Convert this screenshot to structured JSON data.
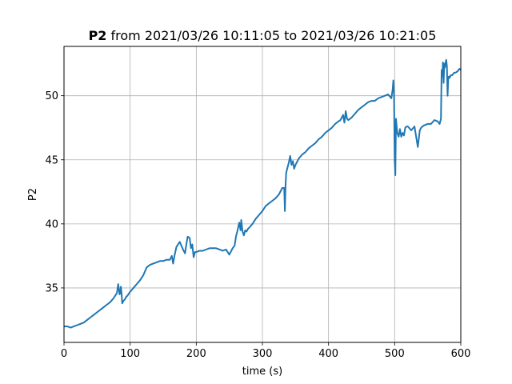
{
  "chart_data": {
    "type": "line",
    "title_bold": "P2",
    "title_rest": " from 2021/03/26 10:11:05 to 2021/03/26 10:21:05",
    "xlabel": "time (s)",
    "ylabel": "P2",
    "xlim": [
      0,
      600
    ],
    "ylim": [
      30.75,
      53.85
    ],
    "xticks": [
      0,
      100,
      200,
      300,
      400,
      500,
      600
    ],
    "yticks": [
      35,
      40,
      45,
      50
    ],
    "grid": true,
    "line_color": "#1f77b4",
    "series": [
      {
        "x": [
          0,
          5,
          10,
          15,
          20,
          25,
          30,
          35,
          40,
          45,
          50,
          55,
          60,
          65,
          70,
          75,
          80,
          82,
          84,
          85,
          86,
          87,
          88,
          90,
          92,
          94,
          96,
          100,
          105,
          110,
          115,
          120,
          125,
          130,
          135,
          140,
          145,
          150,
          155,
          160,
          163,
          165,
          167,
          170,
          175,
          180,
          183,
          185,
          187,
          190,
          192,
          194,
          196,
          198,
          200,
          205,
          210,
          215,
          220,
          225,
          230,
          235,
          240,
          245,
          250,
          255,
          258,
          260,
          262,
          265,
          267,
          268,
          270,
          272,
          274,
          276,
          278,
          280,
          285,
          290,
          295,
          300,
          305,
          310,
          315,
          320,
          325,
          330,
          333,
          334,
          335,
          336,
          338,
          340,
          342,
          344,
          346,
          348,
          350,
          355,
          360,
          365,
          370,
          375,
          380,
          385,
          390,
          395,
          400,
          405,
          410,
          415,
          418,
          420,
          422,
          424,
          426,
          428,
          430,
          435,
          440,
          445,
          450,
          455,
          460,
          465,
          470,
          475,
          480,
          485,
          490,
          495,
          497,
          498,
          499,
          500,
          501,
          502,
          503,
          504,
          506,
          508,
          510,
          512,
          514,
          516,
          518,
          520,
          525,
          530,
          535,
          538,
          540,
          542,
          545,
          550,
          555,
          560,
          565,
          568,
          570,
          571,
          572,
          573,
          574,
          575,
          576,
          577,
          578,
          579,
          580,
          581,
          582,
          583,
          585,
          587,
          590,
          592,
          595,
          598,
          600
        ],
        "y": [
          32.0,
          32.0,
          31.9,
          32.0,
          32.1,
          32.2,
          32.3,
          32.5,
          32.7,
          32.9,
          33.1,
          33.3,
          33.5,
          33.7,
          33.9,
          34.2,
          34.6,
          35.3,
          34.5,
          34.6,
          35.1,
          34.6,
          33.8,
          34.0,
          34.1,
          34.3,
          34.4,
          34.7,
          35.0,
          35.3,
          35.6,
          36.0,
          36.6,
          36.8,
          36.9,
          37.0,
          37.1,
          37.1,
          37.2,
          37.2,
          37.5,
          36.9,
          37.5,
          38.2,
          38.6,
          38.0,
          37.7,
          38.4,
          39.0,
          38.9,
          38.1,
          38.4,
          37.4,
          37.8,
          37.8,
          37.9,
          37.9,
          38.0,
          38.1,
          38.1,
          38.1,
          38.0,
          37.9,
          38.0,
          37.6,
          38.1,
          38.3,
          39.0,
          39.4,
          40.1,
          39.5,
          40.3,
          39.4,
          39.1,
          39.5,
          39.4,
          39.6,
          39.7,
          40.0,
          40.4,
          40.7,
          41.0,
          41.4,
          41.6,
          41.8,
          42.0,
          42.3,
          42.8,
          42.8,
          41.0,
          43.0,
          44.0,
          44.4,
          44.8,
          45.3,
          44.6,
          44.9,
          44.3,
          44.6,
          45.1,
          45.4,
          45.6,
          45.9,
          46.1,
          46.3,
          46.6,
          46.8,
          47.1,
          47.3,
          47.5,
          47.8,
          48.0,
          48.1,
          48.3,
          48.5,
          47.9,
          48.8,
          48.2,
          48.1,
          48.3,
          48.6,
          48.9,
          49.1,
          49.3,
          49.5,
          49.6,
          49.6,
          49.8,
          49.9,
          50.0,
          50.1,
          49.8,
          50.5,
          51.2,
          50.2,
          45.0,
          43.8,
          48.2,
          47.6,
          47.1,
          46.8,
          47.4,
          46.8,
          47.1,
          46.9,
          47.5,
          47.6,
          47.6,
          47.3,
          47.6,
          46.0,
          47.3,
          47.5,
          47.6,
          47.7,
          47.8,
          47.8,
          48.1,
          48.0,
          47.8,
          48.2,
          52.0,
          51.5,
          52.6,
          51.0,
          52.5,
          52.2,
          52.6,
          52.8,
          52.3,
          50.0,
          51.3,
          51.5,
          51.4,
          51.6,
          51.6,
          51.8,
          51.8,
          51.9,
          52.1,
          52.0
        ]
      }
    ]
  }
}
